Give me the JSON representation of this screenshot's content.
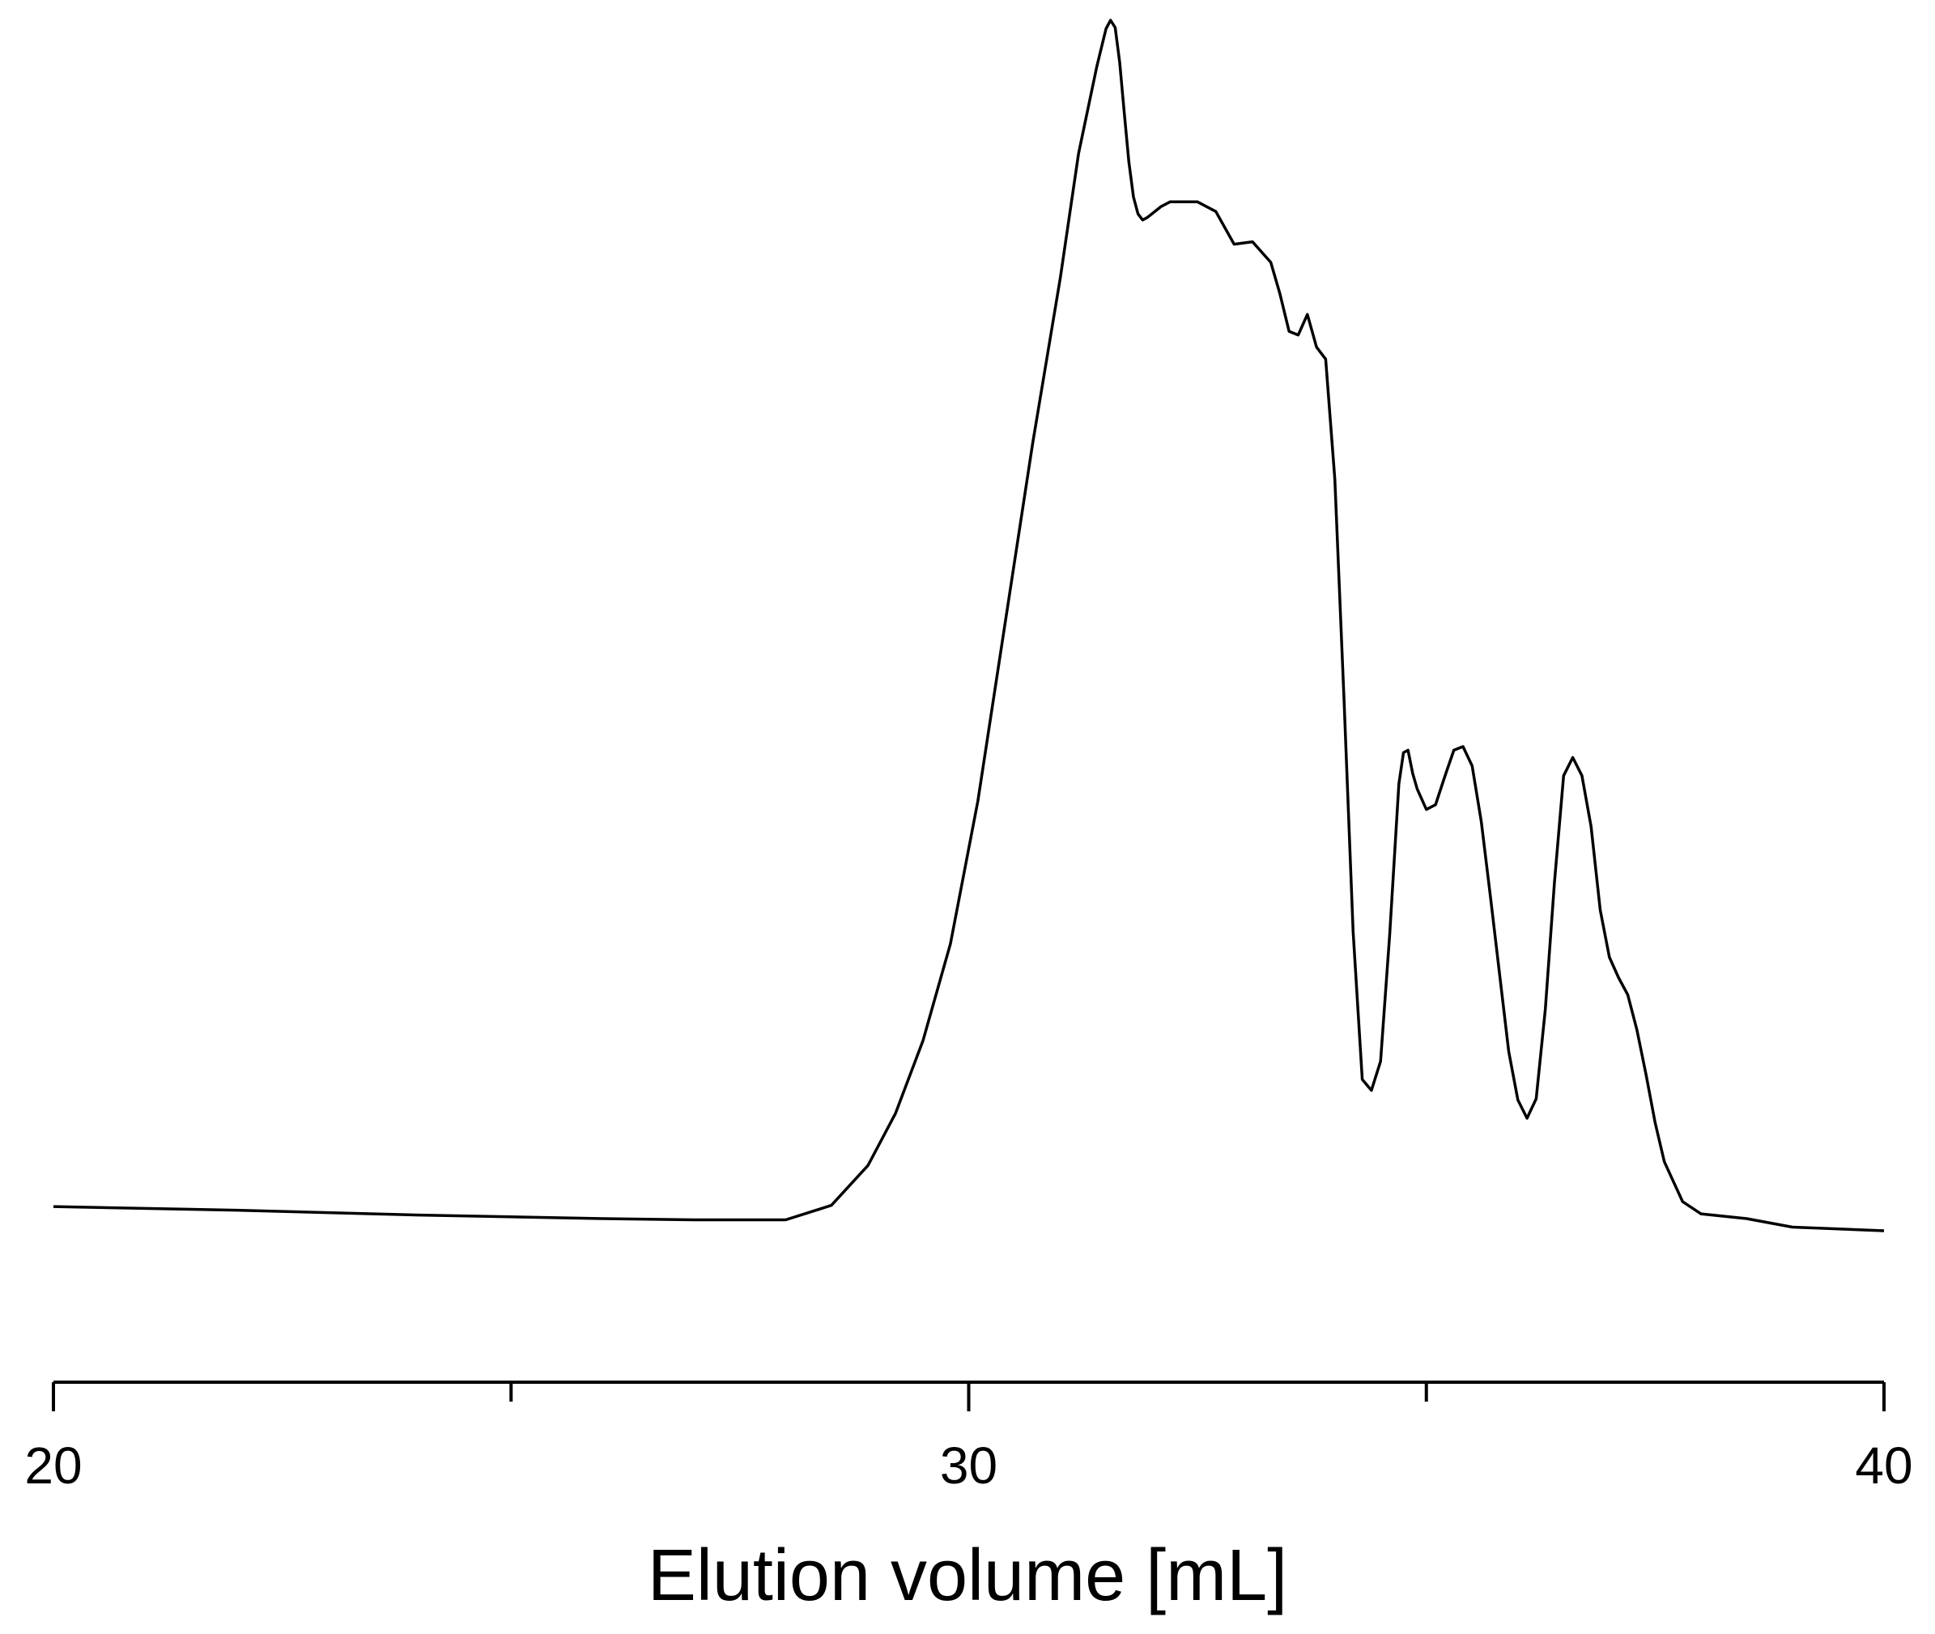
{
  "chart_data": {
    "type": "line",
    "title": "",
    "xlabel": "Elution volume [mL]",
    "ylabel": "",
    "xlim": [
      20,
      40
    ],
    "ylim": [
      -0.01,
      1.0
    ],
    "y_axis_visible": false,
    "grid": false,
    "major_ticks": [
      20,
      30,
      40
    ],
    "minor_ticks": [
      25,
      35
    ],
    "tick_labels": [
      "20",
      "30",
      "40"
    ],
    "series": [
      {
        "x": [
          20.0,
          22.0,
          24.0,
          26.0,
          27.0,
          28.0,
          28.5,
          28.9,
          29.2,
          29.5,
          29.8,
          30.1,
          30.4,
          30.7,
          31.0,
          31.2,
          31.4,
          31.5,
          31.55,
          31.6,
          31.65,
          31.7,
          31.75,
          31.8,
          31.85,
          31.9,
          31.95,
          32.0,
          32.1,
          32.2,
          32.3,
          32.5,
          32.7,
          32.9,
          33.1,
          33.3,
          33.4,
          33.5,
          33.6,
          33.7,
          33.8,
          33.9,
          34.0,
          34.1,
          34.2,
          34.3,
          34.4,
          34.5,
          34.6,
          34.7,
          34.75,
          34.8,
          34.85,
          34.9,
          35.0,
          35.1,
          35.2,
          35.3,
          35.4,
          35.5,
          35.6,
          35.7,
          35.8,
          35.9,
          36.0,
          36.1,
          36.2,
          36.3,
          36.4,
          36.5,
          36.6,
          36.7,
          36.8,
          36.9,
          37.0,
          37.1,
          37.2,
          37.3,
          37.4,
          37.5,
          37.6,
          37.8,
          38.0,
          38.5,
          39.0,
          40.0
        ],
        "y": [
          0.02,
          0.017,
          0.013,
          0.01,
          0.009,
          0.009,
          0.021,
          0.054,
          0.097,
          0.157,
          0.237,
          0.355,
          0.503,
          0.651,
          0.787,
          0.89,
          0.962,
          0.993,
          1.0,
          0.994,
          0.965,
          0.923,
          0.883,
          0.854,
          0.84,
          0.835,
          0.837,
          0.84,
          0.846,
          0.85,
          0.85,
          0.85,
          0.842,
          0.815,
          0.817,
          0.8,
          0.774,
          0.743,
          0.74,
          0.757,
          0.73,
          0.72,
          0.621,
          0.44,
          0.247,
          0.125,
          0.116,
          0.14,
          0.245,
          0.369,
          0.395,
          0.397,
          0.378,
          0.365,
          0.348,
          0.352,
          0.375,
          0.397,
          0.4,
          0.384,
          0.338,
          0.276,
          0.212,
          0.148,
          0.108,
          0.093,
          0.109,
          0.183,
          0.288,
          0.376,
          0.391,
          0.376,
          0.334,
          0.265,
          0.226,
          0.209,
          0.195,
          0.166,
          0.129,
          0.089,
          0.057,
          0.024,
          0.014,
          0.01,
          0.003,
          0.0
        ]
      }
    ]
  }
}
